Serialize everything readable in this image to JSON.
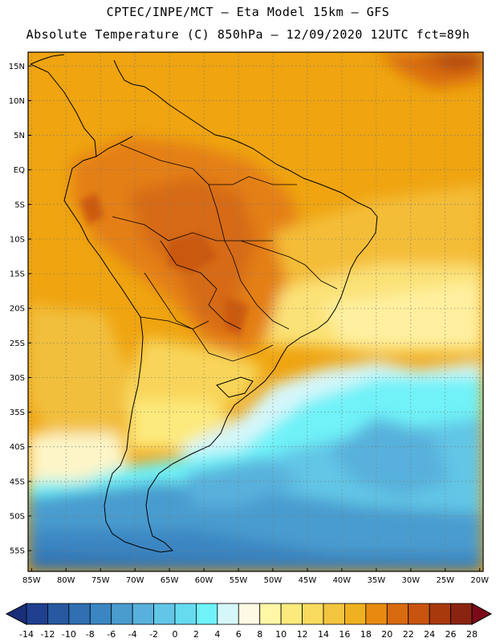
{
  "header": {
    "line1": "CPTEC/INPE/MCT –  Eta Model 15km – GFS",
    "line2": "Absolute Temperature (C) 850hPa – 12/09/2020 12UTC fct=89h"
  },
  "map": {
    "lat_labels": [
      "15N",
      "10N",
      "5N",
      "EQ",
      "5S",
      "10S",
      "15S",
      "20S",
      "25S",
      "30S",
      "35S",
      "40S",
      "45S",
      "50S",
      "55S"
    ],
    "lat_values": [
      15,
      10,
      5,
      0,
      -5,
      -10,
      -15,
      -20,
      -25,
      -30,
      -35,
      -40,
      -45,
      -50,
      -55
    ],
    "lon_labels": [
      "85W",
      "80W",
      "75W",
      "70W",
      "65W",
      "60W",
      "55W",
      "50W",
      "45W",
      "40W",
      "35W",
      "30W",
      "25W",
      "20W"
    ],
    "lon_values": [
      -85,
      -80,
      -75,
      -70,
      -65,
      -60,
      -55,
      -50,
      -45,
      -40,
      -35,
      -30,
      -25,
      -20
    ],
    "lon_range": [
      -85.5,
      -19.5
    ],
    "lat_range": [
      -58,
      17
    ],
    "grid": "dotted"
  },
  "colorbar": {
    "labels": [
      "-14",
      "-12",
      "-10",
      "-8",
      "-6",
      "-4",
      "-2",
      "0",
      "2",
      "4",
      "6",
      "8",
      "10",
      "12",
      "14",
      "16",
      "18",
      "20",
      "22",
      "24",
      "26",
      "28"
    ],
    "colors": [
      "#1f3f8f",
      "#2758a0",
      "#2f6fb2",
      "#3a86c2",
      "#4a9ccf",
      "#58b1dc",
      "#62c6e6",
      "#66dbf0",
      "#6ff2f8",
      "#d5f7fa",
      "#fdf9e2",
      "#fff7a6",
      "#fdea7d",
      "#f8db5e",
      "#f3c53e",
      "#efb120",
      "#e88a10",
      "#d86a10",
      "#c85410",
      "#a8390c",
      "#8a2410"
    ],
    "under_color": "#1a2f7a",
    "over_color": "#7a0a18"
  }
}
